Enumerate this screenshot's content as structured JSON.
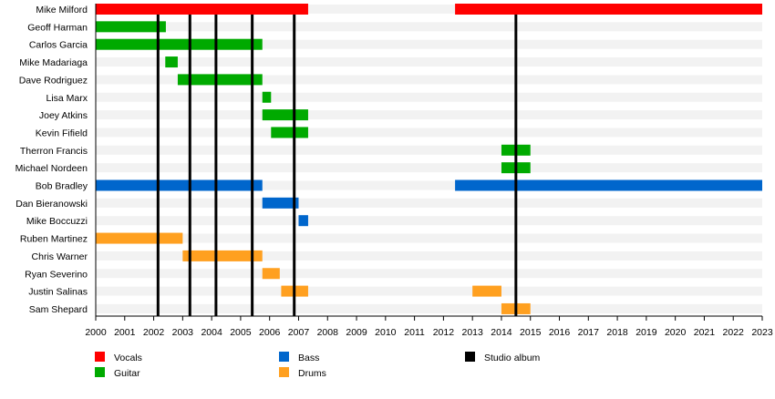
{
  "chart_data": {
    "type": "timeline",
    "xlim": [
      2000,
      2023
    ],
    "x_ticks": [
      2000,
      2001,
      2002,
      2003,
      2004,
      2005,
      2006,
      2007,
      2008,
      2009,
      2010,
      2011,
      2012,
      2013,
      2014,
      2015,
      2016,
      2017,
      2018,
      2019,
      2020,
      2021,
      2022,
      2023
    ],
    "roles": {
      "vocals": {
        "label": "Vocals",
        "color": "#ff0000"
      },
      "guitar": {
        "label": "Guitar",
        "color": "#00aa00"
      },
      "bass": {
        "label": "Bass",
        "color": "#0066cc"
      },
      "drums": {
        "label": "Drums",
        "color": "#ffa020"
      },
      "album": {
        "label": "Studio album",
        "color": "#000000"
      }
    },
    "members": [
      {
        "name": "Mike Milford",
        "role": "vocals",
        "spans": [
          [
            2000,
            2007.33
          ],
          [
            2012.4,
            2023
          ]
        ]
      },
      {
        "name": "Geoff Harman",
        "role": "guitar",
        "spans": [
          [
            2000,
            2002.42
          ]
        ]
      },
      {
        "name": "Carlos Garcia",
        "role": "guitar",
        "spans": [
          [
            2000,
            2005.75
          ]
        ]
      },
      {
        "name": "Mike Madariaga",
        "role": "guitar",
        "spans": [
          [
            2002.4,
            2002.83
          ]
        ]
      },
      {
        "name": "Dave Rodriguez",
        "role": "guitar",
        "spans": [
          [
            2002.83,
            2005.75
          ]
        ]
      },
      {
        "name": "Lisa Marx",
        "role": "guitar",
        "spans": [
          [
            2005.75,
            2006.05
          ]
        ]
      },
      {
        "name": "Joey Atkins",
        "role": "guitar",
        "spans": [
          [
            2005.75,
            2007.33
          ]
        ]
      },
      {
        "name": "Kevin Fifield",
        "role": "guitar",
        "spans": [
          [
            2006.05,
            2007.33
          ]
        ]
      },
      {
        "name": "Therron Francis",
        "role": "guitar",
        "spans": [
          [
            2014,
            2015
          ]
        ]
      },
      {
        "name": "Michael Nordeen",
        "role": "guitar",
        "spans": [
          [
            2014,
            2015
          ]
        ]
      },
      {
        "name": "Bob Bradley",
        "role": "bass",
        "spans": [
          [
            2000,
            2005.75
          ],
          [
            2012.4,
            2023
          ]
        ]
      },
      {
        "name": "Dan Bieranowski",
        "role": "bass",
        "spans": [
          [
            2005.75,
            2007
          ]
        ]
      },
      {
        "name": "Mike Boccuzzi",
        "role": "bass",
        "spans": [
          [
            2007,
            2007.33
          ]
        ]
      },
      {
        "name": "Ruben Martinez",
        "role": "drums",
        "spans": [
          [
            2000,
            2003
          ]
        ]
      },
      {
        "name": "Chris Warner",
        "role": "drums",
        "spans": [
          [
            2003,
            2005.75
          ]
        ]
      },
      {
        "name": "Ryan Severino",
        "role": "drums",
        "spans": [
          [
            2005.75,
            2006.35
          ]
        ]
      },
      {
        "name": "Justin Salinas",
        "role": "drums",
        "spans": [
          [
            2006.4,
            2007.33
          ],
          [
            2013,
            2014
          ]
        ]
      },
      {
        "name": "Sam Shepard",
        "role": "drums",
        "spans": [
          [
            2014,
            2015
          ]
        ]
      }
    ],
    "albums": [
      2002.15,
      2003.25,
      2004.15,
      2005.4,
      2006.85,
      2014.5
    ],
    "legend_placement": "bottom"
  }
}
